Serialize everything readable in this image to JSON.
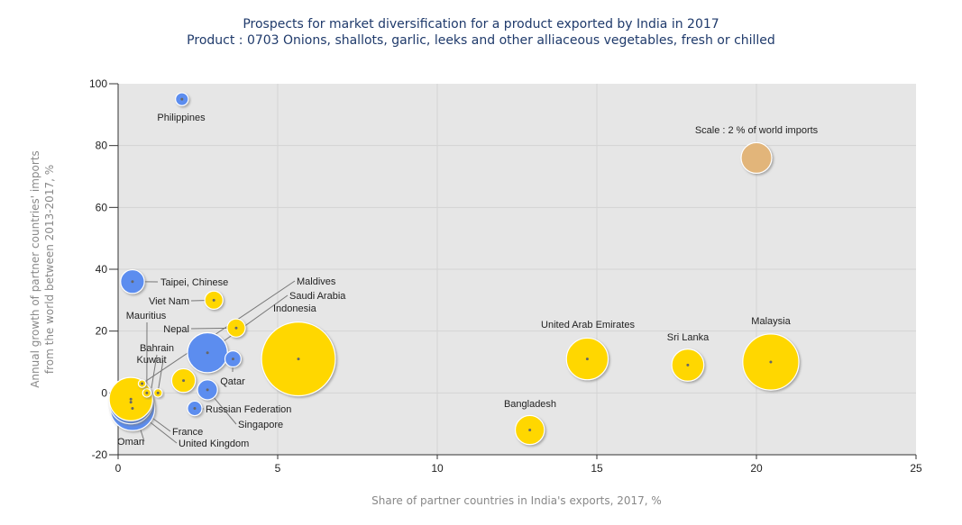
{
  "chart_data": {
    "type": "scatter",
    "title": "Prospects for market diversification for a product exported by India in 2017",
    "subtitle": "Product : 0703 Onions, shallots, garlic, leeks and other alliaceous vegetables, fresh or chilled",
    "xlabel": "Share of partner countries in India's exports, 2017, %",
    "ylabel": "Annual growth of partner countries' imports from the world between 2013-2017, %",
    "xlim": [
      0,
      25
    ],
    "ylim": [
      -20,
      100
    ],
    "xticks": [
      0,
      5,
      10,
      15,
      20,
      25
    ],
    "yticks": [
      -20,
      0,
      20,
      40,
      60,
      80,
      100
    ],
    "grid": true,
    "colors": {
      "yellow": "#ffd700",
      "blue": "#5b8def",
      "scale": "#e2b57a",
      "plot_bg": "#e6e6e6"
    },
    "scale_bubble": {
      "label": "Scale : 2 % of world imports",
      "x": 20,
      "y": 76,
      "size": 2
    },
    "points": [
      {
        "name": "Philippines",
        "x": 2.0,
        "y": 95,
        "size": 0.35,
        "color": "blue"
      },
      {
        "name": "Taipei, Chinese",
        "x": 0.45,
        "y": 36,
        "size": 1.2,
        "color": "blue"
      },
      {
        "name": "Viet Nam",
        "x": 3.0,
        "y": 30,
        "size": 0.7,
        "color": "yellow"
      },
      {
        "name": "Nepal",
        "x": 3.7,
        "y": 21,
        "size": 0.7,
        "color": "yellow"
      },
      {
        "name": "Saudi Arabia",
        "x": 2.8,
        "y": 13,
        "size": 3.4,
        "color": "blue"
      },
      {
        "name": "Qatar",
        "x": 3.6,
        "y": 11,
        "size": 0.55,
        "color": "blue"
      },
      {
        "name": "Indonesia",
        "x": 5.65,
        "y": 11,
        "size": 11.6,
        "color": "yellow"
      },
      {
        "name": "Maldives",
        "x": 0.75,
        "y": 3,
        "size": 0.12,
        "color": "yellow"
      },
      {
        "name": "Bahrain",
        "x": 2.05,
        "y": 4,
        "size": 1.2,
        "color": "yellow"
      },
      {
        "name": "Mauritius",
        "x": 0.9,
        "y": 0,
        "size": 0.15,
        "color": "yellow"
      },
      {
        "name": "Kuwait",
        "x": 1.25,
        "y": 0,
        "size": 0.15,
        "color": "yellow"
      },
      {
        "name": "Singapore",
        "x": 2.8,
        "y": 1,
        "size": 0.85,
        "color": "blue"
      },
      {
        "name": "Russian Federation",
        "x": 2.4,
        "y": -5,
        "size": 0.45,
        "color": "blue"
      },
      {
        "name": "United Kingdom",
        "x": 0.45,
        "y": -5,
        "size": 4.2,
        "color": "blue"
      },
      {
        "name": "France",
        "x": 0.4,
        "y": -3,
        "size": 4.0,
        "color": "blue"
      },
      {
        "name": "Oman",
        "x": 0.4,
        "y": -2,
        "size": 4.0,
        "color": "yellow"
      },
      {
        "name": "United Arab Emirates",
        "x": 14.7,
        "y": 11,
        "size": 3.7,
        "color": "yellow"
      },
      {
        "name": "Sri Lanka",
        "x": 17.85,
        "y": 9,
        "size": 2.2,
        "color": "yellow"
      },
      {
        "name": "Malaysia",
        "x": 20.45,
        "y": 10,
        "size": 6.7,
        "color": "yellow"
      },
      {
        "name": "Bangladesh",
        "x": 12.9,
        "y": -12,
        "size": 1.8,
        "color": "yellow"
      }
    ]
  }
}
